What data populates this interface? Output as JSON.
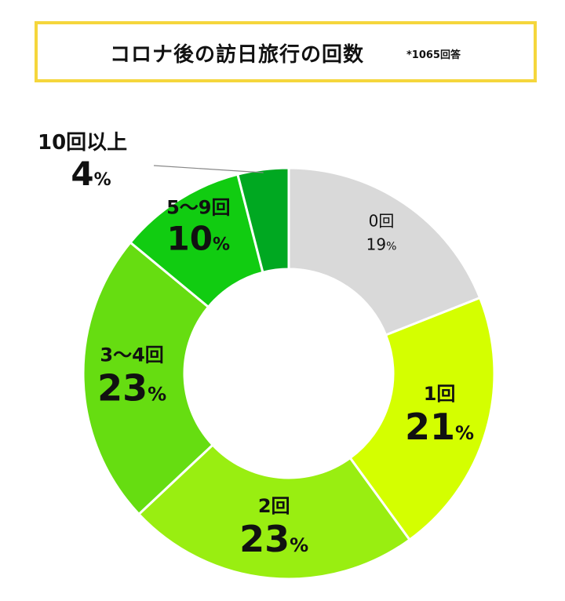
{
  "header": {
    "title": "コロナ後の訪日旅行の回数",
    "note": "*1065回答"
  },
  "chart_data": {
    "type": "pie",
    "donut": true,
    "title": "コロナ後の訪日旅行の回数",
    "note": "*1065回答",
    "unit": "%",
    "categories": [
      "0回",
      "1回",
      "2回",
      "3～4回",
      "5～9回",
      "10回以上"
    ],
    "values": [
      19,
      21,
      23,
      23,
      10,
      4
    ],
    "value_labels": [
      "19",
      "21",
      "23",
      "23",
      "10",
      "4"
    ],
    "colors": [
      "#d9d9d9",
      "#d4ff00",
      "#99ee11",
      "#66dd11",
      "#11cc11",
      "#00a821"
    ],
    "start_angle_deg": 0,
    "direction": "clockwise"
  }
}
